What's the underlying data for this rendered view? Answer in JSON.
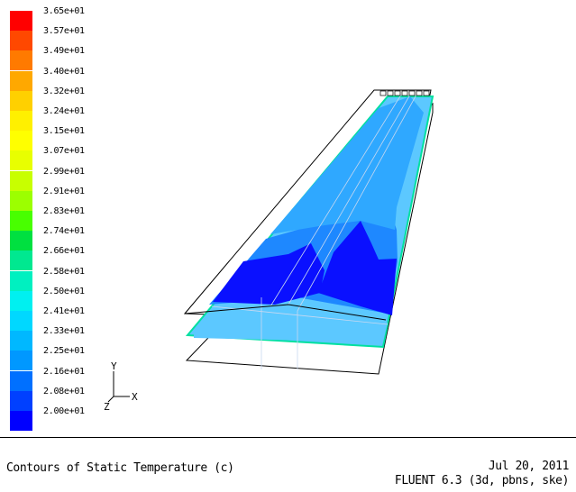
{
  "chart_data": {
    "type": "heatmap",
    "title": "",
    "colorbar": {
      "labels": [
        "3.65e+01",
        "3.57e+01",
        "3.49e+01",
        "3.40e+01",
        "3.32e+01",
        "3.24e+01",
        "3.15e+01",
        "3.07e+01",
        "2.99e+01",
        "2.91e+01",
        "2.83e+01",
        "2.74e+01",
        "2.66e+01",
        "2.58e+01",
        "2.50e+01",
        "2.41e+01",
        "2.33e+01",
        "2.25e+01",
        "2.16e+01",
        "2.08e+01",
        "2.00e+01"
      ],
      "colors": [
        "#ff0000",
        "#ff4800",
        "#ff7a00",
        "#ffa800",
        "#ffd000",
        "#fff000",
        "#ffff00",
        "#e8ff00",
        "#c8ff00",
        "#9cff00",
        "#48ff00",
        "#00e040",
        "#00e890",
        "#00f0c0",
        "#00f0f0",
        "#00d8ff",
        "#00b8ff",
        "#0098ff",
        "#0070ff",
        "#0040ff",
        "#0000ff"
      ]
    },
    "field_colors": {
      "hot": "#0000ff",
      "mid": "#0070ff",
      "light": "#0098ff",
      "cyan": "#00b8ff"
    }
  },
  "axes_triad": {
    "y": "Y",
    "z": "Z",
    "x": "X"
  },
  "caption": {
    "title": "Contours of Static Temperature (c)",
    "date": "Jul 20, 2011",
    "solver": "FLUENT 6.3 (3d, pbns, ske)"
  }
}
